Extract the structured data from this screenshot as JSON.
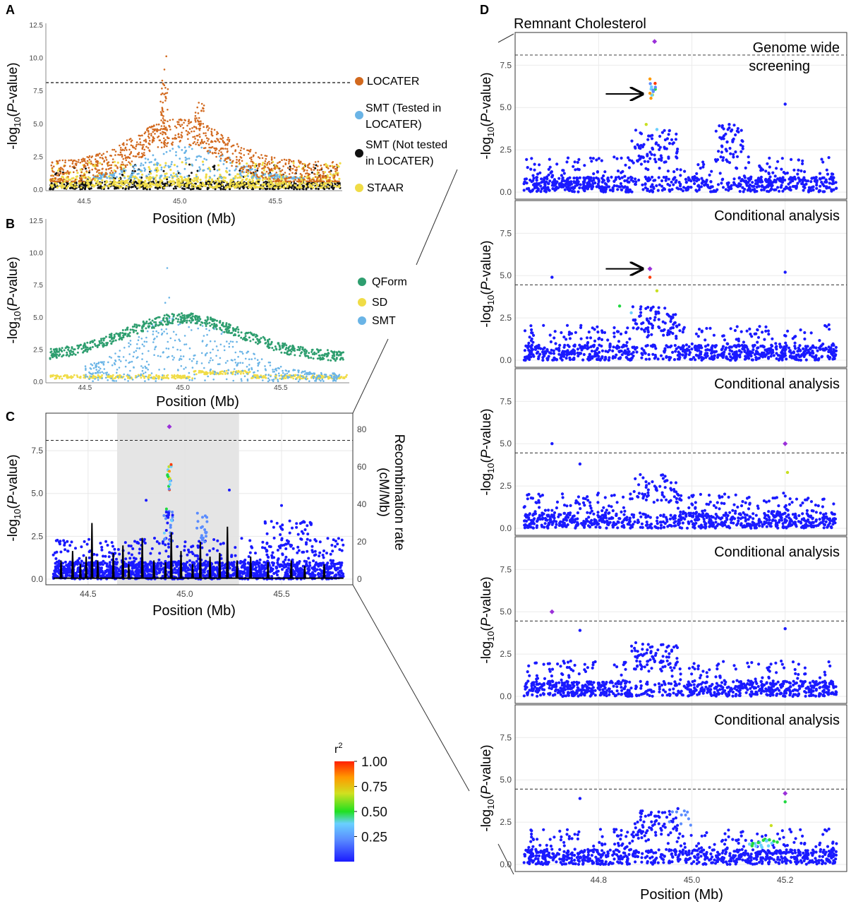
{
  "colors": {
    "locater": "#d2691e",
    "smt_tested": "#6ab4e6",
    "smt_not_tested": "#111111",
    "staar": "#f0dc46",
    "qform": "#2e9e6f",
    "sd": "#f0dc46",
    "smt": "#6ab4e6",
    "snp_low_ld": "#1a1aff",
    "lead": "#9b30d9",
    "region_shade": "#e4e4e4",
    "threshold": "#444444"
  },
  "colorbar": {
    "title": "r",
    "title_sup": "2",
    "ticks": [
      "1.00",
      "0.75",
      "0.50",
      "0.25"
    ],
    "tick_values": [
      1.0,
      0.75,
      0.5,
      0.25
    ],
    "range": [
      0.0,
      1.0
    ],
    "gradient": [
      "#1a1aff",
      "#5a8cff",
      "#6ad0ff",
      "#20e020",
      "#d0e020",
      "#ff9a00",
      "#ff2000"
    ]
  },
  "chart_data": [
    {
      "panel": "A",
      "type": "scatter",
      "xlabel": "Position (Mb)",
      "ylabel": "-log10(P-value)",
      "xticks": [
        "44.5",
        "45.0",
        "45.5"
      ],
      "yticks": [
        "0.0",
        "2.5",
        "5.0",
        "7.5",
        "10.0",
        "12.5"
      ],
      "xlim": [
        44.3,
        45.85
      ],
      "ylim": [
        0,
        12.5
      ],
      "threshold": 8.1,
      "legend_position": "right",
      "series": [
        {
          "name": "LOCATER",
          "color_key": "locater",
          "shape": "broad peak near 44.9-45.3 Mb, max 10.1 at 44.93"
        },
        {
          "name": "SMT (Tested in LOCATER)",
          "color_key": "smt_tested",
          "shape": "values up to about 3.6"
        },
        {
          "name": "SMT (Not tested in LOCATER)",
          "color_key": "smt_not_tested",
          "shape": "values up to about 2.0"
        },
        {
          "name": "STAAR",
          "color_key": "staar",
          "shape": "values up to about 2.0"
        }
      ]
    },
    {
      "panel": "B",
      "type": "scatter",
      "xlabel": "Position (Mb)",
      "ylabel": "-log10(P-value)",
      "xticks": [
        "44.5",
        "45.0",
        "45.5"
      ],
      "yticks": [
        "0.0",
        "2.5",
        "5.0",
        "7.5",
        "10.0",
        "12.5"
      ],
      "xlim": [
        44.3,
        45.85
      ],
      "ylim": [
        0,
        12.5
      ],
      "legend_position": "right",
      "series": [
        {
          "name": "QForm",
          "color_key": "qform",
          "shape": "arch from about 2 at 44.3 Mb to 5 at 45.0 Mb, back to 2 at 45.8 Mb"
        },
        {
          "name": "SD",
          "color_key": "sd",
          "shape": "flat near 0.3"
        },
        {
          "name": "SMT",
          "color_key": "smt",
          "shape": "values up to 8.8 at 44.92"
        }
      ]
    },
    {
      "panel": "C",
      "type": "scatter",
      "xlabel": "Position (Mb)",
      "ylabel": "-log10(P-value)",
      "y2label": "Recombination rate (cM/Mb)",
      "xticks": [
        "44.5",
        "45.0",
        "45.5"
      ],
      "yticks": [
        "0.0",
        "2.5",
        "5.0",
        "7.5"
      ],
      "y2ticks": [
        "0",
        "20",
        "40",
        "60",
        "80"
      ],
      "xlim": [
        44.3,
        45.85
      ],
      "ylim": [
        0,
        9.4
      ],
      "y2lim": [
        0,
        86
      ],
      "threshold": 8.1,
      "shaded_region": [
        44.65,
        45.28
      ],
      "lead_variant": {
        "x": 44.92,
        "y": 8.9
      },
      "recombination_peaks": [
        {
          "x": 44.36,
          "y": 10
        },
        {
          "x": 44.42,
          "y": 15
        },
        {
          "x": 44.46,
          "y": 8
        },
        {
          "x": 44.49,
          "y": 12
        },
        {
          "x": 44.52,
          "y": 30
        },
        {
          "x": 44.55,
          "y": 10
        },
        {
          "x": 44.63,
          "y": 14
        },
        {
          "x": 44.68,
          "y": 18
        },
        {
          "x": 44.71,
          "y": 8
        },
        {
          "x": 44.78,
          "y": 22
        },
        {
          "x": 44.84,
          "y": 10
        },
        {
          "x": 44.9,
          "y": 9
        },
        {
          "x": 44.93,
          "y": 25
        },
        {
          "x": 44.98,
          "y": 15
        },
        {
          "x": 45.04,
          "y": 8
        },
        {
          "x": 45.08,
          "y": 20
        },
        {
          "x": 45.13,
          "y": 12
        },
        {
          "x": 45.18,
          "y": 14
        },
        {
          "x": 45.22,
          "y": 28
        },
        {
          "x": 45.27,
          "y": 10
        },
        {
          "x": 45.34,
          "y": 12
        },
        {
          "x": 45.43,
          "y": 9
        },
        {
          "x": 45.55,
          "y": 10
        },
        {
          "x": 45.62,
          "y": 7
        },
        {
          "x": 45.72,
          "y": 8
        }
      ]
    },
    {
      "panel": "D1",
      "type": "scatter",
      "title": "Remnant Cholesterol",
      "label": "Genome wide screening",
      "ylabel": "-log10(P-value)",
      "yticks": [
        "0.0",
        "2.5",
        "5.0",
        "7.5"
      ],
      "xlim": [
        44.63,
        45.32
      ],
      "ylim": [
        0,
        9.1
      ],
      "threshold": 8.1,
      "lead_variant": {
        "x": 44.92,
        "y": 8.9
      },
      "arrow_at": {
        "x": 44.9,
        "y": 5.8
      },
      "secondary_peaks": [
        {
          "x": 45.2,
          "y": 5.2
        },
        {
          "x": 45.08,
          "y": 4.0
        }
      ]
    },
    {
      "panel": "D2",
      "type": "scatter",
      "label": "Conditional analysis",
      "ylabel": "-log10(P-value)",
      "yticks": [
        "0.0",
        "2.5",
        "5.0",
        "7.5"
      ],
      "xlim": [
        44.63,
        45.32
      ],
      "ylim": [
        0,
        9.1
      ],
      "threshold": 4.45,
      "lead_variant": {
        "x": 44.91,
        "y": 5.4
      },
      "arrow_at": {
        "x": 44.9,
        "y": 5.4
      },
      "secondary_peaks": [
        {
          "x": 45.2,
          "y": 5.2
        },
        {
          "x": 44.7,
          "y": 4.9
        }
      ]
    },
    {
      "panel": "D3",
      "type": "scatter",
      "label": "Conditional analysis",
      "ylabel": "-log10(P-value)",
      "yticks": [
        "0.0",
        "2.5",
        "5.0",
        "7.5"
      ],
      "xlim": [
        44.63,
        45.32
      ],
      "ylim": [
        0,
        9.1
      ],
      "threshold": 4.45,
      "lead_variant": {
        "x": 45.2,
        "y": 5.0
      },
      "secondary_peaks": [
        {
          "x": 44.7,
          "y": 5.0
        },
        {
          "x": 44.76,
          "y": 3.8
        }
      ]
    },
    {
      "panel": "D4",
      "type": "scatter",
      "label": "Conditional analysis",
      "ylabel": "-log10(P-value)",
      "yticks": [
        "0.0",
        "2.5",
        "5.0",
        "7.5"
      ],
      "xlim": [
        44.63,
        45.32
      ],
      "ylim": [
        0,
        9.1
      ],
      "threshold": 4.45,
      "lead_variant": {
        "x": 44.7,
        "y": 5.0
      },
      "secondary_peaks": [
        {
          "x": 44.76,
          "y": 3.9
        },
        {
          "x": 45.2,
          "y": 4.0
        }
      ]
    },
    {
      "panel": "D5",
      "type": "scatter",
      "label": "Conditional analysis",
      "ylabel": "-log10(P-value)",
      "xlabel": "Position (Mb)",
      "xticks": [
        "44.8",
        "45.0",
        "45.2"
      ],
      "yticks": [
        "0.0",
        "2.5",
        "5.0",
        "7.5"
      ],
      "xlim": [
        44.63,
        45.32
      ],
      "ylim": [
        0,
        9.1
      ],
      "threshold": 4.45,
      "lead_variant": {
        "x": 45.2,
        "y": 4.2
      },
      "secondary_peaks": [
        {
          "x": 44.76,
          "y": 3.9
        },
        {
          "x": 44.97,
          "y": 3.3
        }
      ]
    }
  ]
}
